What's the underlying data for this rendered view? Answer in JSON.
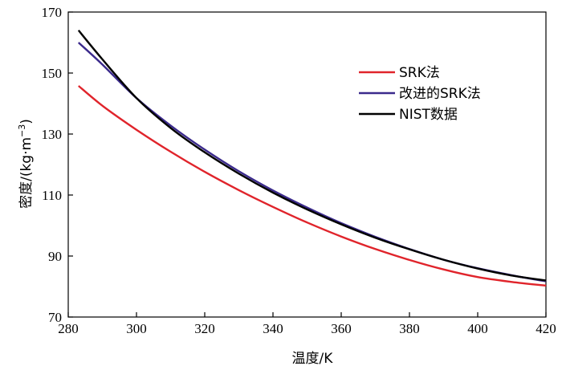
{
  "chart_data": {
    "type": "line",
    "title": "",
    "xlabel": "温度/K",
    "ylabel": "密度/(kg·m",
    "ylabel_superscript": "−3",
    "ylabel_close": ")",
    "xlim": [
      280,
      420
    ],
    "ylim": [
      70,
      170
    ],
    "xticks": [
      280,
      300,
      320,
      340,
      360,
      380,
      400,
      420
    ],
    "yticks": [
      70,
      90,
      110,
      130,
      150,
      170
    ],
    "legend_position": "top-right",
    "series": [
      {
        "name": "SRK法",
        "color": "#e0242b",
        "x": [
          283,
          290,
          300,
          310,
          320,
          330,
          340,
          350,
          360,
          370,
          380,
          390,
          400,
          410,
          420
        ],
        "y": [
          145.8,
          139.3,
          131.4,
          124.2,
          117.6,
          111.6,
          106.1,
          101.0,
          96.4,
          92.3,
          88.7,
          85.6,
          83.1,
          81.5,
          80.3
        ]
      },
      {
        "name": "改进的SRK法",
        "color": "#3b2a8c",
        "x": [
          283,
          290,
          300,
          310,
          320,
          330,
          340,
          350,
          360,
          370,
          380,
          390,
          400,
          410,
          420
        ],
        "y": [
          160.0,
          152.8,
          141.8,
          132.8,
          124.9,
          117.8,
          111.5,
          105.9,
          100.8,
          96.3,
          92.3,
          88.8,
          86.0,
          83.7,
          81.7
        ]
      },
      {
        "name": "NIST数据",
        "color": "#000000",
        "x": [
          283,
          290,
          300,
          310,
          320,
          330,
          340,
          350,
          360,
          370,
          380,
          390,
          400,
          410,
          420
        ],
        "y": [
          164.0,
          154.5,
          141.8,
          132.0,
          124.0,
          117.0,
          110.8,
          105.3,
          100.4,
          96.0,
          92.2,
          88.8,
          85.9,
          83.6,
          82.0
        ]
      }
    ]
  }
}
